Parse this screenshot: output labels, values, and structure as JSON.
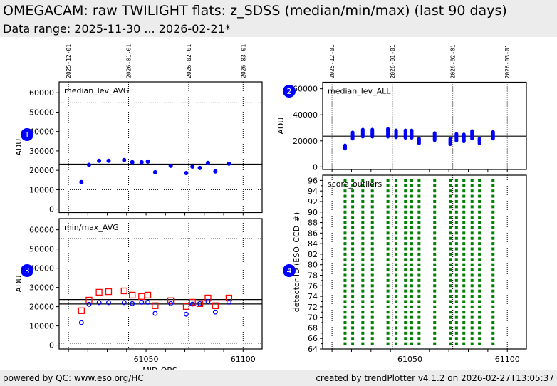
{
  "header": {
    "title": "OMEGACAM: raw TWILIGHT flats: z_SDSS (median/min/max) (last 90 days)",
    "subtitle": "Data range: 2025-11-30 ... 2026-02-21*"
  },
  "footer": {
    "left": "powered by QC: www.eso.org/HC",
    "right": "created by trendPlotter v4.1.2 on 2026-02-27T13:05:37"
  },
  "colors": {
    "median": "#0000ff",
    "max": "#ff0000",
    "min": "#0000ff",
    "outliers": "#008000",
    "marker": "#0000ff",
    "header_bg": "#ececec"
  },
  "chart_data": [
    {
      "id": 1,
      "type": "scatter",
      "title": "median_lev_AVG",
      "marker_label": "1",
      "xlabel": "",
      "ylabel": "ADU",
      "xlim": [
        61005.2,
        61109.8
      ],
      "ylim": [
        -1800,
        65600
      ],
      "yticks": [
        0,
        10000,
        20000,
        30000,
        40000,
        50000,
        60000
      ],
      "xticks_major": [],
      "date_ticks": [
        {
          "mjd": 61010,
          "label": "2025-12-01"
        },
        {
          "mjd": 61041,
          "label": "2026-01-01"
        },
        {
          "mjd": 61072,
          "label": "2026-02-01"
        },
        {
          "mjd": 61100,
          "label": "2026-03-01"
        }
      ],
      "hlines": [
        23200
      ],
      "dotted_hlines": [
        54800,
        10000
      ],
      "series": [
        {
          "name": "median_lev_AVG",
          "marker": "filled-circle",
          "x": [
            61016.7,
            61020.6,
            61025.8,
            61030.7,
            61038.7,
            61042.9,
            61047.7,
            61050.9,
            61054.7,
            61062.7,
            61070.7,
            61073.9,
            61077.7,
            61081.9,
            61085.7,
            61092.7
          ],
          "y": [
            13900,
            22800,
            24900,
            24900,
            25300,
            24200,
            24200,
            24500,
            19000,
            22300,
            18600,
            21900,
            21200,
            23800,
            19400,
            23400
          ]
        }
      ]
    },
    {
      "id": 2,
      "type": "scatter",
      "title": "median_lev_ALL",
      "marker_label": "2",
      "xlabel": "",
      "ylabel": "ADU",
      "xlim": [
        61005.2,
        61109.8
      ],
      "ylim": [
        -2000,
        65000
      ],
      "yticks": [
        0,
        20000,
        40000,
        60000
      ],
      "date_ticks": [
        {
          "mjd": 61010,
          "label": "2025-12-01"
        },
        {
          "mjd": 61041,
          "label": "2026-01-01"
        },
        {
          "mjd": 61072,
          "label": "2026-02-01"
        },
        {
          "mjd": 61100,
          "label": "2026-03-01"
        }
      ],
      "hlines": [
        23600
      ],
      "dotted_hlines": [],
      "series": [
        {
          "name": "median_lev_ALL (per-detector range)",
          "marker": "filled-circle-column",
          "x": [
            61016.7,
            61020.6,
            61025.8,
            61030.7,
            61038.7,
            61042.9,
            61047.7,
            61050.9,
            61054.7,
            61062.7,
            61070.7,
            61073.9,
            61077.7,
            61081.9,
            61085.7,
            61092.7
          ],
          "ymin": [
            12600,
            20200,
            21800,
            21800,
            21800,
            21300,
            20900,
            20900,
            16700,
            19100,
            16000,
            18700,
            18200,
            20300,
            16700,
            20300
          ],
          "ymax": [
            17900,
            27800,
            30000,
            30000,
            30500,
            29400,
            29400,
            29400,
            23100,
            27300,
            23100,
            26700,
            26300,
            28900,
            23100,
            28200
          ]
        }
      ]
    },
    {
      "id": 3,
      "type": "scatter",
      "title": "min/max_AVG",
      "marker_label": "3",
      "xlabel": "MJD-OBS",
      "ylabel": "ADU",
      "xlim": [
        61005.2,
        61109.8
      ],
      "ylim": [
        -2000,
        65800
      ],
      "yticks": [
        0,
        10000,
        20000,
        30000,
        40000,
        50000,
        60000
      ],
      "xticks_major": [
        61050,
        61100
      ],
      "hlines": [
        23700,
        21400
      ],
      "dotted_hlines": [
        55400,
        1000
      ],
      "series": [
        {
          "name": "max_AVG",
          "marker": "open-square",
          "color": "#ff0000",
          "x": [
            61016.7,
            61020.6,
            61025.8,
            61030.7,
            61038.7,
            61042.9,
            61047.7,
            61050.9,
            61054.7,
            61062.7,
            61070.7,
            61073.9,
            61077.7,
            61081.9,
            61085.7,
            61092.7
          ],
          "y": [
            17900,
            23400,
            27500,
            27800,
            28200,
            26000,
            25300,
            26000,
            20500,
            23100,
            20100,
            22300,
            21600,
            24500,
            20500,
            24500
          ]
        },
        {
          "name": "min_AVG",
          "marker": "open-circle",
          "color": "#0000ff",
          "x": [
            61016.7,
            61020.6,
            61025.8,
            61030.7,
            61038.7,
            61042.9,
            61047.7,
            61050.9,
            61054.7,
            61062.7,
            61070.7,
            61073.9,
            61077.7,
            61081.9,
            61085.7,
            61092.7
          ],
          "y": [
            11700,
            21200,
            22100,
            22100,
            22100,
            21600,
            22300,
            22300,
            16500,
            21600,
            16100,
            21300,
            21600,
            22700,
            17200,
            22300
          ]
        }
      ]
    },
    {
      "id": 4,
      "type": "scatter",
      "title": "score_outliers",
      "marker_label": "4",
      "xlabel": "",
      "ylabel": "detector ID (ESO_CCD_#)",
      "xlim": [
        61005.2,
        61109.8
      ],
      "ylim": [
        64,
        97
      ],
      "yticks": [
        64,
        66,
        68,
        70,
        72,
        74,
        76,
        78,
        80,
        82,
        84,
        86,
        88,
        90,
        92,
        94,
        96
      ],
      "xticks_major": [
        61050,
        61100
      ],
      "hlines": [],
      "dotted_hlines": [],
      "series": [
        {
          "name": "score_outliers",
          "marker": "filled-square",
          "color": "#008000",
          "x": [
            61016.7,
            61020.6,
            61025.8,
            61030.7,
            61038.7,
            61042.9,
            61047.7,
            61050.9,
            61054.7,
            61062.7,
            61070.7,
            61073.9,
            61077.7,
            61081.9,
            61085.7,
            61092.7
          ],
          "detectors": [
            65,
            96
          ]
        }
      ]
    }
  ]
}
